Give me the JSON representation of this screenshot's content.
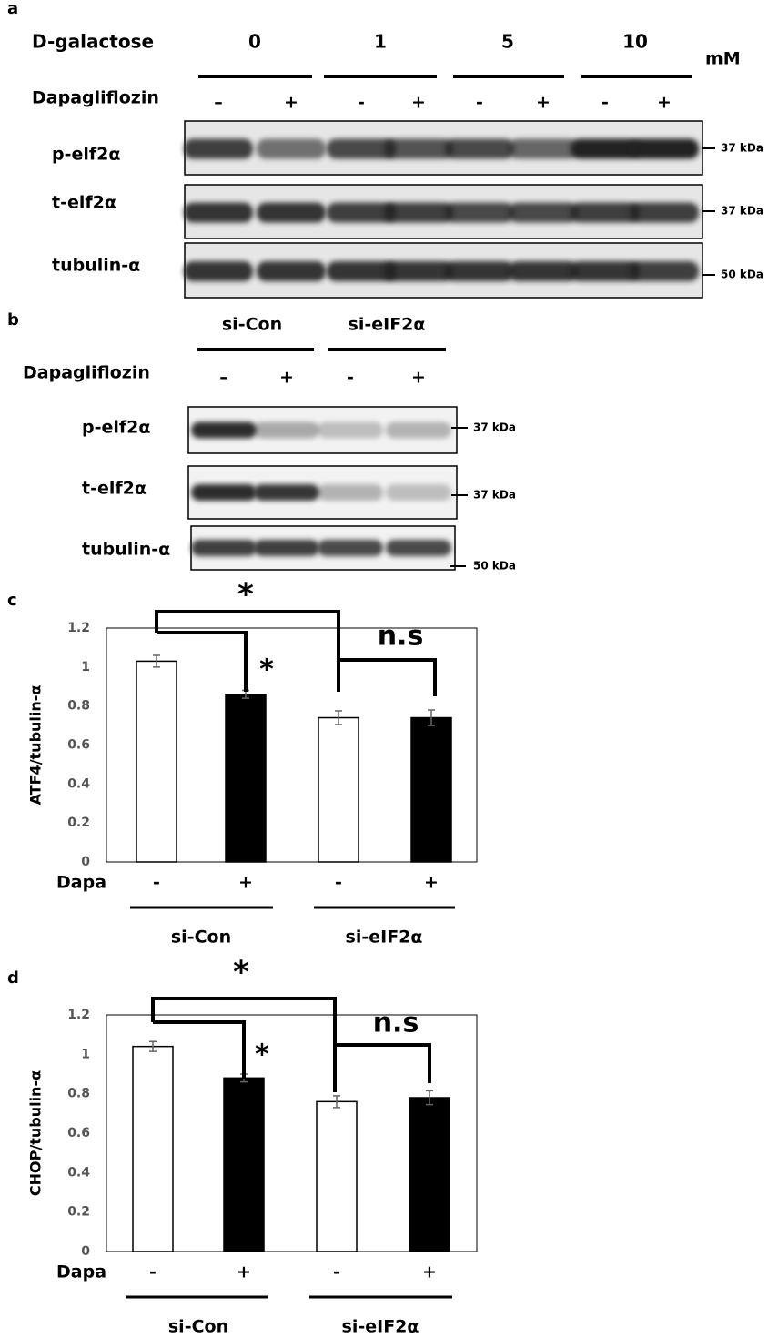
{
  "panel_a": {
    "label": "a",
    "treatment": "D-galactose",
    "concentrations": [
      "0",
      "1",
      "5",
      "10"
    ],
    "unit": "mM",
    "drug": "Dapagliflozin",
    "signs": [
      "–",
      "+",
      "-",
      "+",
      "-",
      "+",
      "-",
      "+"
    ],
    "rows": [
      {
        "label": "p-elf2α",
        "marker": "37 kDa"
      },
      {
        "label": "t-elf2α",
        "marker": "37 kDa"
      },
      {
        "label": "tubulin-α",
        "marker": "50 kDa"
      }
    ]
  },
  "panel_b": {
    "label": "b",
    "groups": [
      "si-Con",
      "si-eIF2α"
    ],
    "drug": "Dapagliflozin",
    "signs": [
      "–",
      "+",
      "-",
      "+"
    ],
    "rows": [
      {
        "label": "p-elf2α",
        "marker": "37 kDa"
      },
      {
        "label": "t-elf2α",
        "marker": "37 kDa"
      },
      {
        "label": "tubulin-α",
        "marker": "50 kDa"
      }
    ]
  },
  "chart_data": [
    {
      "type": "bar",
      "panel_label": "c",
      "y_label": "ATF4/tubulin-α",
      "x_label": "Dapa",
      "categories": [
        "-",
        "+",
        "-",
        "+"
      ],
      "groups": [
        "si-Con",
        "si-eIF2α"
      ],
      "values": [
        1.03,
        0.86,
        0.74,
        0.74
      ],
      "errors": [
        0.03,
        0.02,
        0.035,
        0.04
      ],
      "colors": [
        "#ffffff",
        "#000000",
        "#ffffff",
        "#000000"
      ],
      "ylim": [
        0,
        1.2
      ],
      "yticks": [
        0,
        0.2,
        0.4,
        0.6,
        0.8,
        1,
        1.2
      ],
      "annotations": [
        "*",
        "*",
        "n.s"
      ]
    },
    {
      "type": "bar",
      "panel_label": "d",
      "y_label": "CHOP/tubulin-α",
      "x_label": "Dapa",
      "categories": [
        "-",
        "+",
        "-",
        "+"
      ],
      "groups": [
        "si-Con",
        "si-eIF2α"
      ],
      "values": [
        1.04,
        0.88,
        0.76,
        0.78
      ],
      "errors": [
        0.025,
        0.02,
        0.03,
        0.035
      ],
      "colors": [
        "#ffffff",
        "#000000",
        "#ffffff",
        "#000000"
      ],
      "ylim": [
        0,
        1.2
      ],
      "yticks": [
        0,
        0.2,
        0.4,
        0.6,
        0.8,
        1,
        1.2
      ],
      "annotations": [
        "*",
        "*",
        "n.s"
      ]
    }
  ]
}
